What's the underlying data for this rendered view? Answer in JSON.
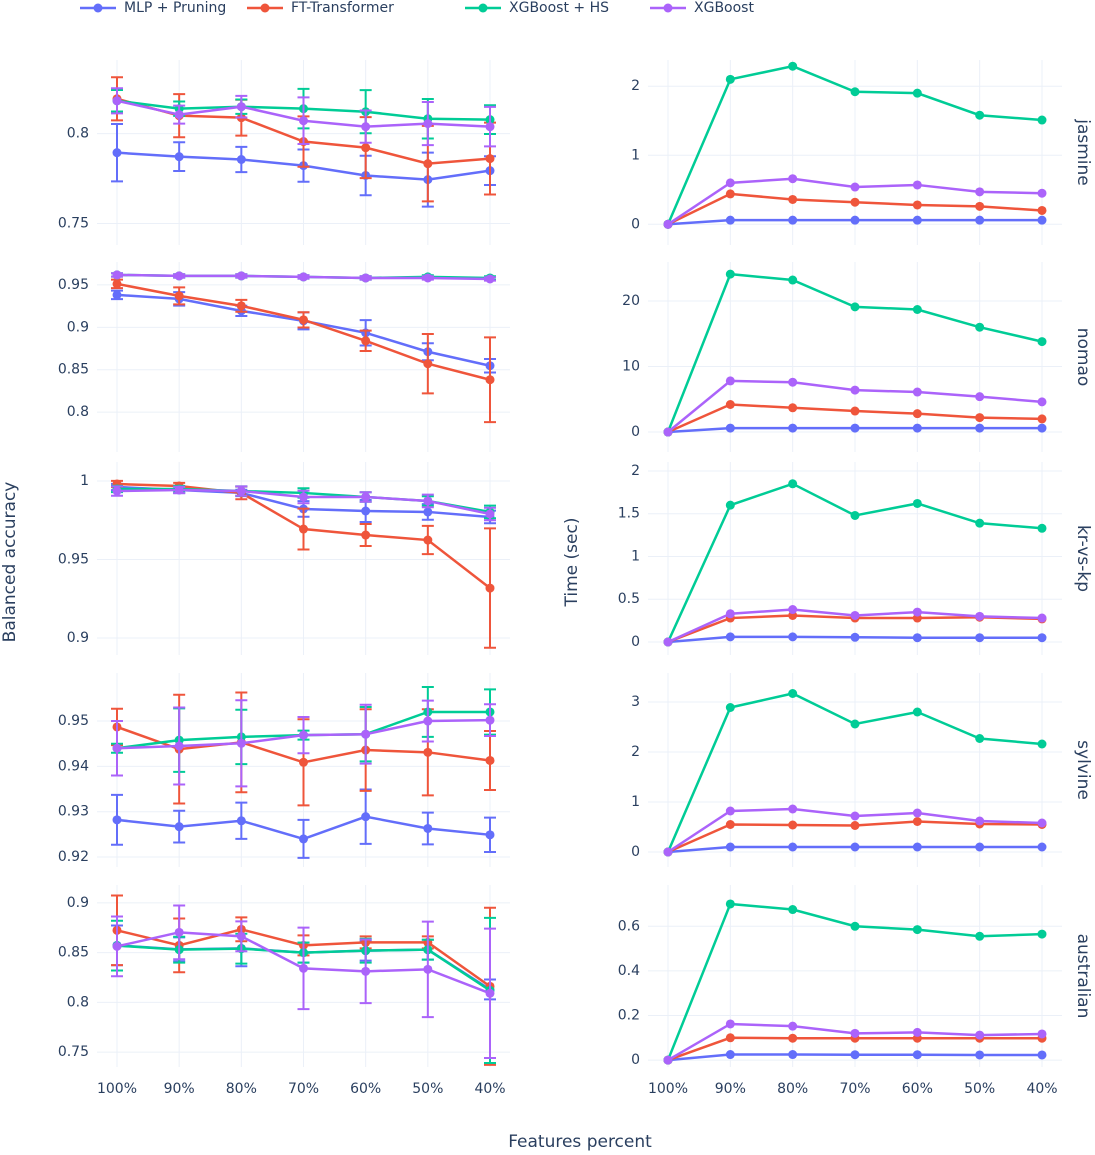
{
  "chart_data": [
    {
      "type": "line",
      "xlabel": "Features percent",
      "ylabel": "Balanced accuracy",
      "ylim": [
        0.738,
        0.841
      ],
      "yticks": [
        0.75,
        0.8
      ],
      "grid": true,
      "series": [
        {
          "name": "MLP + Pruning",
          "color": "#636efa",
          "values": [
            0.7894,
            0.7872,
            0.7856,
            0.7822,
            0.7767,
            0.7744,
            0.7794
          ],
          "errors": [
            0.016,
            0.008,
            0.007,
            0.009,
            0.011,
            0.015,
            0.008
          ]
        },
        {
          "name": "FT-Transformer",
          "color": "#ef553b",
          "values": [
            0.8194,
            0.81,
            0.8089,
            0.7956,
            0.7922,
            0.7833,
            0.7861
          ],
          "errors": [
            0.012,
            0.012,
            0.01,
            0.014,
            0.017,
            0.021,
            0.02
          ]
        },
        {
          "name": "XGBoost + HS",
          "color": "#00cc96",
          "values": [
            0.8183,
            0.8139,
            0.815,
            0.8139,
            0.8122,
            0.8083,
            0.8078
          ],
          "errors": [
            0.006,
            0.004,
            0.004,
            0.011,
            0.012,
            0.011,
            0.008
          ]
        },
        {
          "name": "XGBoost",
          "color": "#ab63fa",
          "values": [
            0.8183,
            0.8106,
            0.815,
            0.8072,
            0.8039,
            0.8056,
            0.8039
          ],
          "errors": [
            0.007,
            0.005,
            0.006,
            0.013,
            0.009,
            0.012,
            0.011
          ]
        }
      ]
    },
    {
      "type": "line",
      "title": "jasmine",
      "ylabel": "Time (sec)",
      "ylim": [
        -0.3,
        2.38
      ],
      "yticks": [
        0,
        1,
        2
      ],
      "grid": true,
      "series": [
        {
          "color": "#636efa",
          "values": [
            0,
            0.06,
            0.06,
            0.06,
            0.06,
            0.06,
            0.06
          ]
        },
        {
          "color": "#ef553b",
          "values": [
            0,
            0.44,
            0.36,
            0.32,
            0.28,
            0.26,
            0.2
          ]
        },
        {
          "color": "#00cc96",
          "values": [
            0,
            2.1,
            2.29,
            1.92,
            1.9,
            1.58,
            1.51
          ]
        },
        {
          "color": "#ab63fa",
          "values": [
            0,
            0.6,
            0.66,
            0.54,
            0.57,
            0.47,
            0.45
          ]
        }
      ]
    },
    {
      "type": "line",
      "ylim": [
        0.753,
        0.977
      ],
      "yticks": [
        0.8,
        0.85,
        0.9,
        0.95
      ],
      "grid": true,
      "series": [
        {
          "color": "#636efa",
          "values": [
            0.9382,
            0.9335,
            0.9194,
            0.9076,
            0.8935,
            0.8712,
            0.8547
          ],
          "errors": [
            0.005,
            0.008,
            0.006,
            0.01,
            0.015,
            0.01,
            0.008
          ]
        },
        {
          "color": "#ef553b",
          "values": [
            0.9512,
            0.9371,
            0.9253,
            0.9088,
            0.8841,
            0.8571,
            0.8382
          ],
          "errors": [
            0.005,
            0.01,
            0.007,
            0.009,
            0.012,
            0.035,
            0.05
          ]
        },
        {
          "color": "#00cc96",
          "values": [
            0.9618,
            0.9606,
            0.9606,
            0.9594,
            0.9582,
            0.9594,
            0.9582
          ],
          "errors": [
            0.002,
            0.002,
            0.002,
            0.002,
            0.002,
            0.002,
            0.002
          ]
        },
        {
          "color": "#ab63fa",
          "values": [
            0.9618,
            0.9606,
            0.9606,
            0.9594,
            0.9582,
            0.9582,
            0.957
          ],
          "errors": [
            0.002,
            0.002,
            0.002,
            0.002,
            0.002,
            0.002,
            0.002
          ]
        }
      ]
    },
    {
      "type": "line",
      "title": "nomao",
      "ylim": [
        -3.05,
        25.95
      ],
      "yticks": [
        0,
        10,
        20
      ],
      "grid": true,
      "series": [
        {
          "color": "#636efa",
          "values": [
            0,
            0.6,
            0.6,
            0.6,
            0.6,
            0.6,
            0.6
          ]
        },
        {
          "color": "#ef553b",
          "values": [
            0,
            4.2,
            3.7,
            3.2,
            2.8,
            2.2,
            2.0
          ]
        },
        {
          "color": "#00cc96",
          "values": [
            0,
            24.1,
            23.2,
            19.1,
            18.7,
            16.0,
            13.8
          ]
        },
        {
          "color": "#ab63fa",
          "values": [
            0,
            7.8,
            7.6,
            6.4,
            6.1,
            5.4,
            4.6
          ]
        }
      ]
    },
    {
      "type": "line",
      "ylim": [
        0.8892,
        1.0121
      ],
      "yticks": [
        0.9,
        0.95,
        1
      ],
      "grid": true,
      "series": [
        {
          "color": "#636efa",
          "values": [
            0.9962,
            0.9943,
            0.9924,
            0.9822,
            0.9809,
            0.9803,
            0.9771
          ],
          "errors": [
            0.002,
            0.002,
            0.002,
            0.005,
            0.007,
            0.005,
            0.004
          ]
        },
        {
          "color": "#ef553b",
          "values": [
            0.9981,
            0.9968,
            0.9924,
            0.9694,
            0.9656,
            0.9624,
            0.9318
          ],
          "errors": [
            0.002,
            0.002,
            0.004,
            0.013,
            0.007,
            0.009,
            0.038
          ]
        },
        {
          "color": "#00cc96",
          "values": [
            0.9949,
            0.9949,
            0.9936,
            0.9924,
            0.9898,
            0.9873,
            0.9803
          ],
          "errors": [
            0.002,
            0.002,
            0.003,
            0.003,
            0.003,
            0.003,
            0.004
          ]
        },
        {
          "color": "#ab63fa",
          "values": [
            0.9936,
            0.9943,
            0.9936,
            0.9898,
            0.9898,
            0.9873,
            0.979
          ],
          "errors": [
            0.003,
            0.002,
            0.003,
            0.004,
            0.003,
            0.004,
            0.004
          ]
        }
      ]
    },
    {
      "type": "line",
      "title": "kr-vs-kp",
      "ylim": [
        -0.152,
        2.105
      ],
      "yticks": [
        0,
        0.5,
        1,
        1.5,
        2
      ],
      "grid": true,
      "series": [
        {
          "color": "#636efa",
          "values": [
            0,
            0.06,
            0.06,
            0.055,
            0.05,
            0.05,
            0.05
          ]
        },
        {
          "color": "#ef553b",
          "values": [
            0,
            0.28,
            0.31,
            0.28,
            0.28,
            0.29,
            0.27
          ]
        },
        {
          "color": "#00cc96",
          "values": [
            0,
            1.6,
            1.85,
            1.48,
            1.62,
            1.39,
            1.33
          ]
        },
        {
          "color": "#ab63fa",
          "values": [
            0,
            0.33,
            0.38,
            0.31,
            0.35,
            0.3,
            0.28
          ]
        }
      ]
    },
    {
      "type": "line",
      "ylim": [
        0.9178,
        0.9606
      ],
      "yticks": [
        0.92,
        0.93,
        0.94,
        0.95
      ],
      "grid": true,
      "series": [
        {
          "color": "#636efa",
          "values": [
            0.9282,
            0.9267,
            0.928,
            0.924,
            0.9289,
            0.9263,
            0.9249
          ],
          "errors": [
            0.0055,
            0.0035,
            0.004,
            0.0042,
            0.006,
            0.0035,
            0.0038
          ]
        },
        {
          "color": "#ef553b",
          "values": [
            0.9487,
            0.9438,
            0.9453,
            0.9409,
            0.9436,
            0.9431,
            0.9413
          ],
          "errors": [
            0.004,
            0.012,
            0.011,
            0.0095,
            0.009,
            0.0095,
            0.0065
          ]
        },
        {
          "color": "#00cc96",
          "values": [
            0.944,
            0.9458,
            0.9465,
            0.9469,
            0.9471,
            0.952,
            0.952
          ],
          "errors": [
            0.001,
            0.007,
            0.006,
            0.001,
            0.006,
            0.0055,
            0.005
          ]
        },
        {
          "color": "#ab63fa",
          "values": [
            0.944,
            0.9445,
            0.9451,
            0.9469,
            0.9471,
            0.95,
            0.9502
          ],
          "errors": [
            0.006,
            0.0085,
            0.0095,
            0.004,
            0.0065,
            0.0045,
            0.0035
          ]
        }
      ]
    },
    {
      "type": "line",
      "title": "sylvine",
      "ylim": [
        -0.3,
        3.58
      ],
      "yticks": [
        0,
        1,
        2,
        3
      ],
      "grid": true,
      "series": [
        {
          "color": "#636efa",
          "values": [
            0,
            0.1,
            0.1,
            0.1,
            0.1,
            0.1,
            0.1
          ]
        },
        {
          "color": "#ef553b",
          "values": [
            0,
            0.55,
            0.54,
            0.53,
            0.61,
            0.56,
            0.55
          ]
        },
        {
          "color": "#00cc96",
          "values": [
            0,
            2.89,
            3.17,
            2.56,
            2.8,
            2.27,
            2.16
          ]
        },
        {
          "color": "#ab63fa",
          "values": [
            0,
            0.82,
            0.86,
            0.72,
            0.78,
            0.62,
            0.58
          ]
        }
      ]
    },
    {
      "type": "line",
      "categories": [
        "100%",
        "90%",
        "80%",
        "70%",
        "60%",
        "50%",
        "40%"
      ],
      "ylim": [
        0.735,
        0.918
      ],
      "yticks": [
        0.75,
        0.8,
        0.85,
        0.9
      ],
      "grid": true,
      "series": [
        {
          "color": "#636efa",
          "values": [
            0.8573,
            0.8533,
            0.8543,
            0.85,
            0.852,
            0.853,
            0.813
          ],
          "errors": [
            0.02,
            0.012,
            0.018,
            0.01,
            0.01,
            0.01,
            0.01
          ]
        },
        {
          "color": "#ef553b",
          "values": [
            0.8724,
            0.8573,
            0.8734,
            0.8573,
            0.8603,
            0.8603,
            0.8161
          ],
          "errors": [
            0.035,
            0.027,
            0.012,
            0.01,
            0.006,
            0.006,
            0.079
          ]
        },
        {
          "color": "#00cc96",
          "values": [
            0.857,
            0.853,
            0.854,
            0.85,
            0.852,
            0.853,
            0.812
          ],
          "errors": [
            0.025,
            0.013,
            0.015,
            0.01,
            0.012,
            0.01,
            0.073
          ]
        },
        {
          "color": "#ab63fa",
          "values": [
            0.8563,
            0.8704,
            0.8664,
            0.8342,
            0.8312,
            0.8332,
            0.8091
          ],
          "errors": [
            0.03,
            0.027,
            0.015,
            0.041,
            0.032,
            0.048,
            0.065
          ]
        }
      ]
    },
    {
      "type": "line",
      "title": "australian",
      "categories": [
        "100%",
        "90%",
        "80%",
        "70%",
        "60%",
        "50%",
        "40%"
      ],
      "ylim": [
        -0.031,
        0.785
      ],
      "yticks": [
        0,
        0.2,
        0.4,
        0.6
      ],
      "grid": true,
      "series": [
        {
          "color": "#636efa",
          "values": [
            0,
            0.025,
            0.025,
            0.024,
            0.024,
            0.023,
            0.023
          ]
        },
        {
          "color": "#ef553b",
          "values": [
            0,
            0.1,
            0.098,
            0.098,
            0.098,
            0.098,
            0.098
          ]
        },
        {
          "color": "#00cc96",
          "values": [
            0,
            0.7,
            0.675,
            0.6,
            0.585,
            0.555,
            0.565
          ]
        },
        {
          "color": "#ab63fa",
          "values": [
            0,
            0.162,
            0.152,
            0.12,
            0.124,
            0.112,
            0.117
          ]
        }
      ]
    }
  ]
}
